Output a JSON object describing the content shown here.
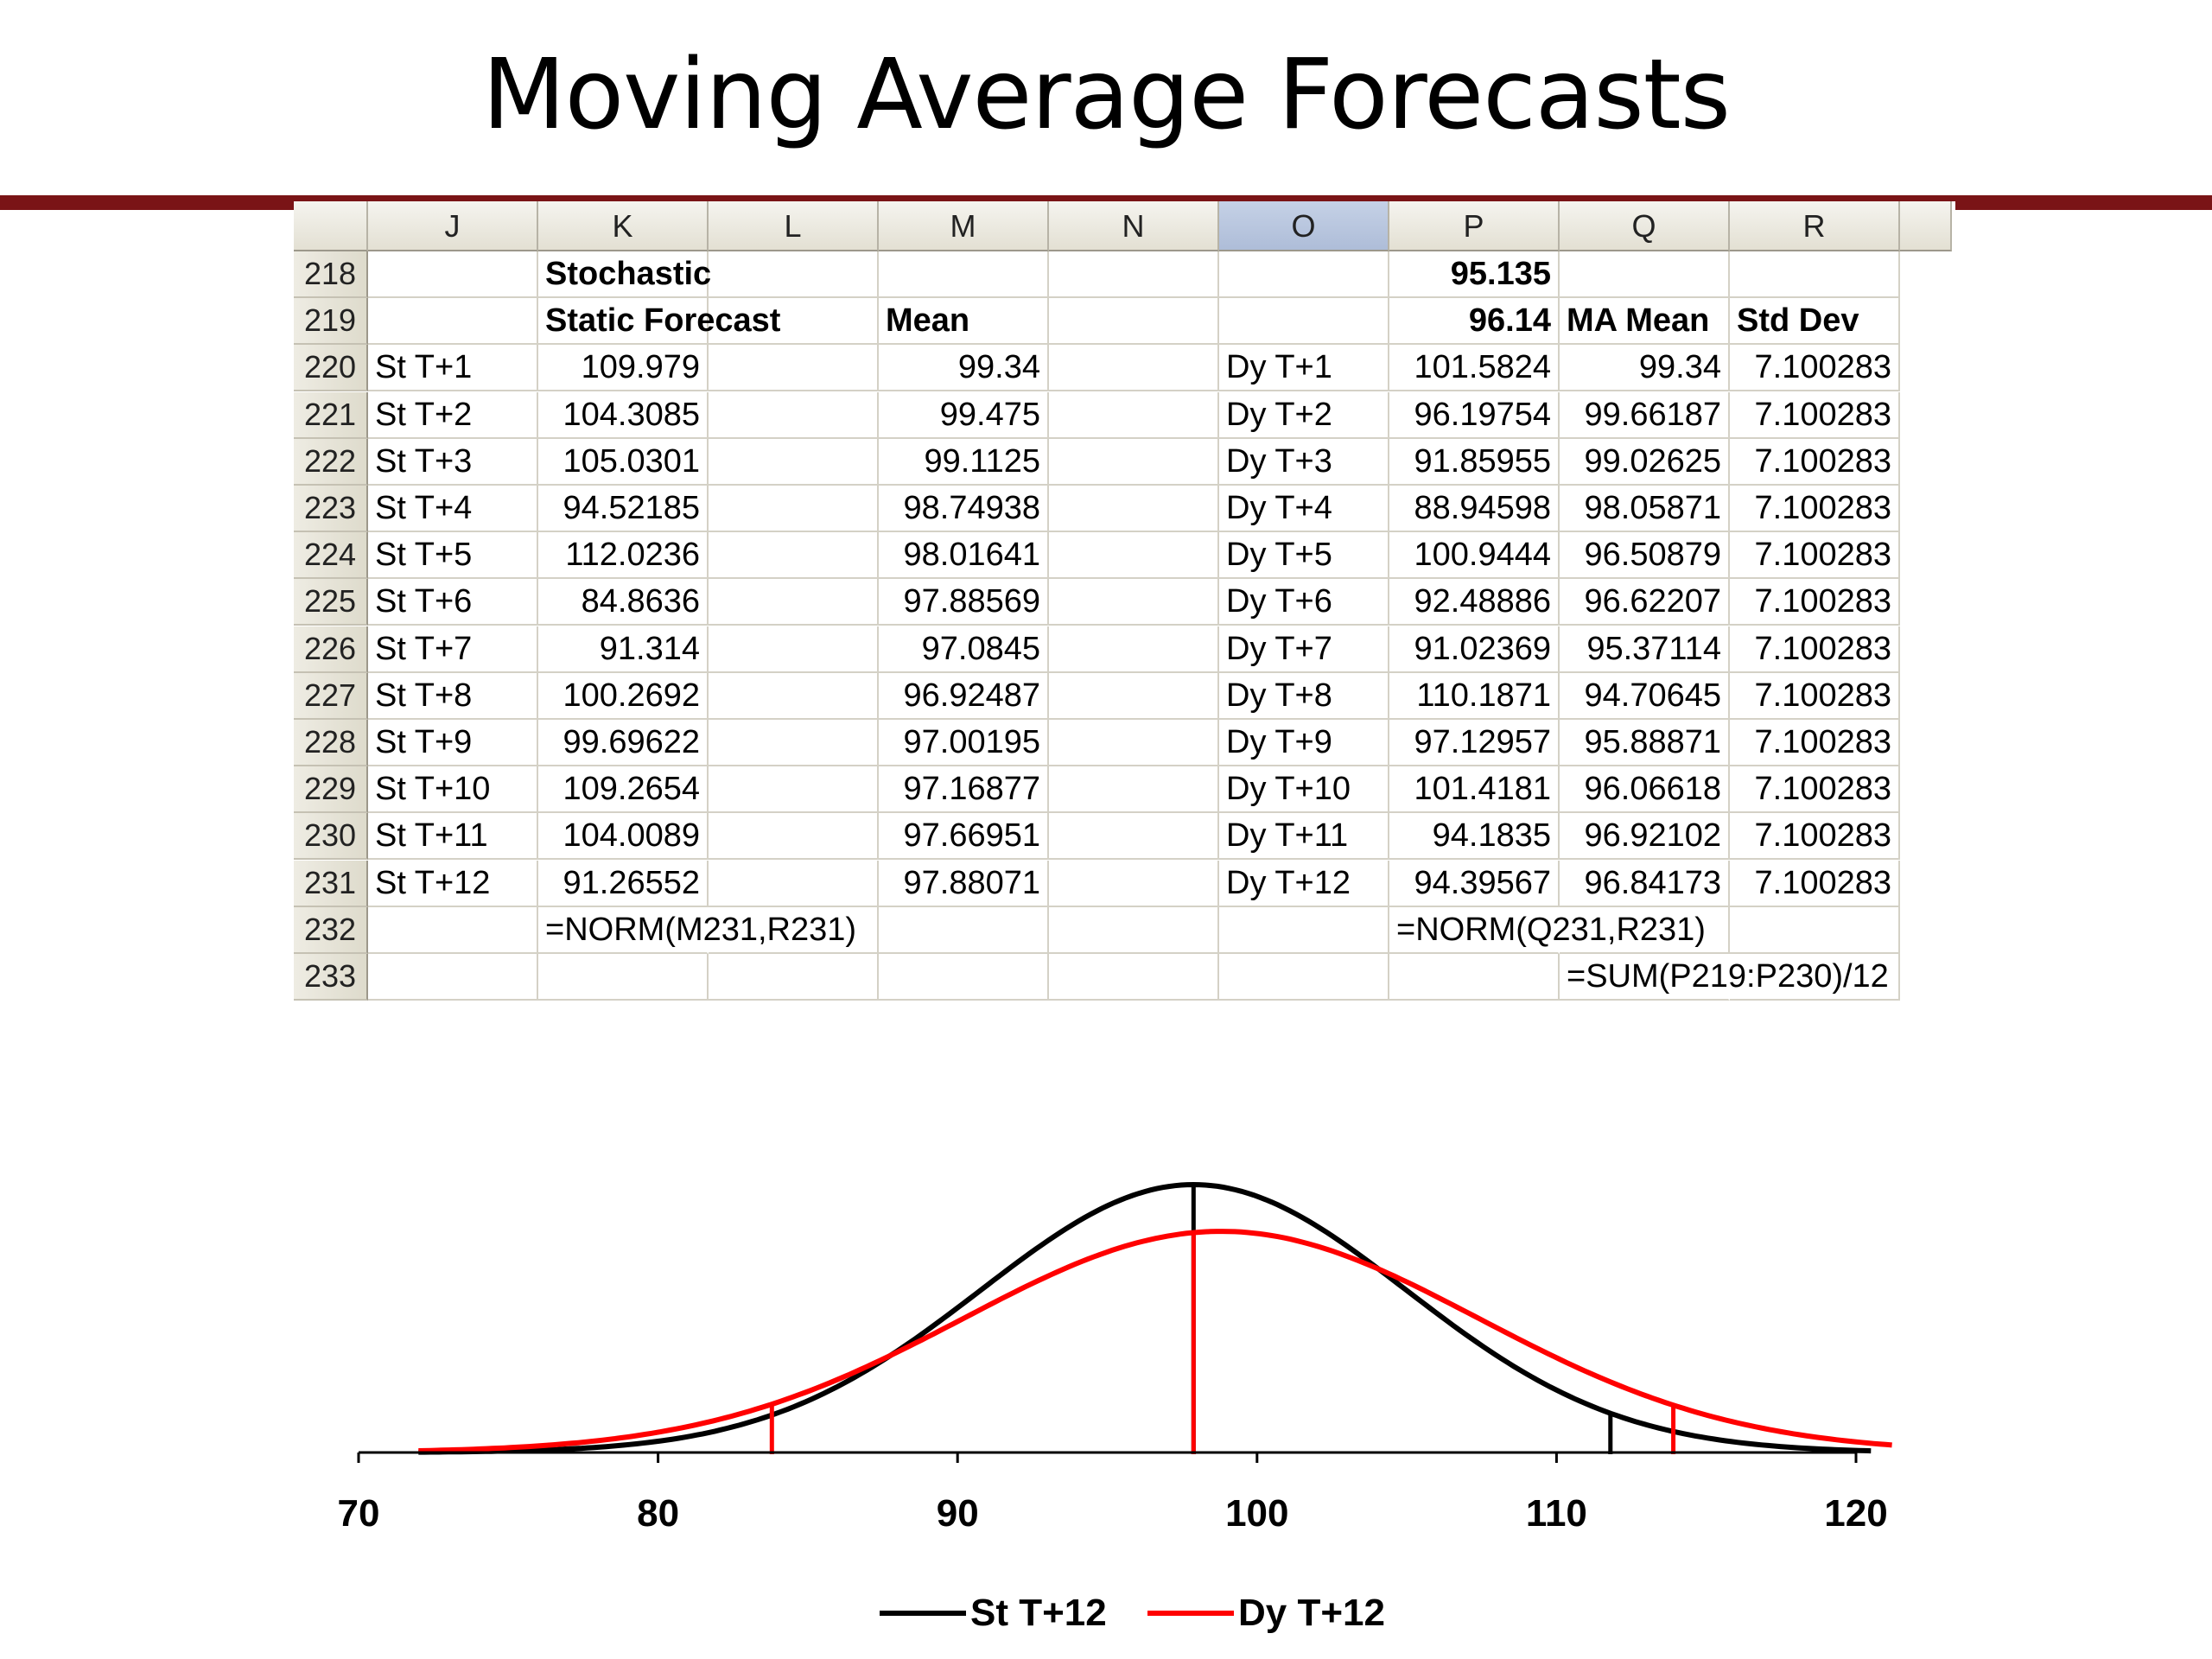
{
  "slide": {
    "title": "Moving Average Forecasts"
  },
  "spreadsheet": {
    "columns": [
      "J",
      "K",
      "L",
      "M",
      "N",
      "O",
      "P",
      "Q",
      "R"
    ],
    "selected_column": "O",
    "rows": [
      {
        "row": "218",
        "K": "Stochastic",
        "P": "95.135"
      },
      {
        "row": "219",
        "K": "Static Forecast",
        "M": "Mean",
        "P": "96.14",
        "Q": "MA Mean",
        "R": "Std Dev"
      },
      {
        "row": "220",
        "J": "St T+1",
        "K": "109.979",
        "M": "99.34",
        "O": "Dy T+1",
        "P": "101.5824",
        "Q": "99.34",
        "R": "7.100283"
      },
      {
        "row": "221",
        "J": "St T+2",
        "K": "104.3085",
        "M": "99.475",
        "O": "Dy T+2",
        "P": "96.19754",
        "Q": "99.66187",
        "R": "7.100283"
      },
      {
        "row": "222",
        "J": "St T+3",
        "K": "105.0301",
        "M": "99.1125",
        "O": "Dy T+3",
        "P": "91.85955",
        "Q": "99.02625",
        "R": "7.100283"
      },
      {
        "row": "223",
        "J": "St T+4",
        "K": "94.52185",
        "M": "98.74938",
        "O": "Dy T+4",
        "P": "88.94598",
        "Q": "98.05871",
        "R": "7.100283"
      },
      {
        "row": "224",
        "J": "St T+5",
        "K": "112.0236",
        "M": "98.01641",
        "O": "Dy T+5",
        "P": "100.9444",
        "Q": "96.50879",
        "R": "7.100283"
      },
      {
        "row": "225",
        "J": "St T+6",
        "K": "84.8636",
        "M": "97.88569",
        "O": "Dy T+6",
        "P": "92.48886",
        "Q": "96.62207",
        "R": "7.100283"
      },
      {
        "row": "226",
        "J": "St T+7",
        "K": "91.314",
        "M": "97.0845",
        "O": "Dy T+7",
        "P": "91.02369",
        "Q": "95.37114",
        "R": "7.100283"
      },
      {
        "row": "227",
        "J": "St T+8",
        "K": "100.2692",
        "M": "96.92487",
        "O": "Dy T+8",
        "P": "110.1871",
        "Q": "94.70645",
        "R": "7.100283"
      },
      {
        "row": "228",
        "J": "St T+9",
        "K": "99.69622",
        "M": "97.00195",
        "O": "Dy T+9",
        "P": "97.12957",
        "Q": "95.88871",
        "R": "7.100283"
      },
      {
        "row": "229",
        "J": "St T+10",
        "K": "109.2654",
        "M": "97.16877",
        "O": "Dy T+10",
        "P": "101.4181",
        "Q": "96.06618",
        "R": "7.100283"
      },
      {
        "row": "230",
        "J": "St T+11",
        "K": "104.0089",
        "M": "97.66951",
        "O": "Dy T+11",
        "P": "94.1835",
        "Q": "96.92102",
        "R": "7.100283"
      },
      {
        "row": "231",
        "J": "St T+12",
        "K": "91.26552",
        "M": "97.88071",
        "O": "Dy T+12",
        "P": "94.39567",
        "Q": "96.84173",
        "R": "7.100283"
      },
      {
        "row": "232",
        "K": "=NORM(M231,R231)",
        "P": "=NORM(Q231,R231)"
      },
      {
        "row": "233",
        "Q": "=SUM(P219:P230)/12"
      }
    ]
  },
  "chart_data": {
    "type": "line",
    "title": "",
    "xlabel": "",
    "ylabel": "",
    "xlim": [
      70,
      120
    ],
    "x_ticks": [
      "70",
      "80",
      "90",
      "100",
      "110",
      "120"
    ],
    "grid": false,
    "legend_position": "bottom",
    "series": [
      {
        "name": "St T+12",
        "color": "#000000",
        "mean": 97.88,
        "std_dev": 7.1,
        "x_range": [
          72,
          120.5
        ],
        "reference_lines_x": [
          97.88,
          111.8
        ]
      },
      {
        "name": "Dy T+12",
        "color": "#ff0000",
        "mean": 98.8,
        "std_dev": 8.6,
        "x_range": [
          72,
          121.2
        ],
        "reference_lines_x": [
          83.8,
          97.88,
          113.9
        ]
      }
    ]
  }
}
